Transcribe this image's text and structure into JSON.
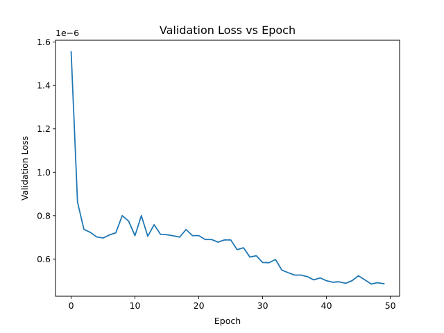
{
  "chart_data": {
    "type": "line",
    "title": "Validation Loss vs Epoch",
    "xlabel": "Epoch",
    "ylabel": "Validation Loss",
    "y_offset_label": "1e−6",
    "y_scale_factor": 1e-06,
    "xlim": [
      -2.45,
      51.45
    ],
    "ylim": [
      0.4285,
      1.6085
    ],
    "x_ticks": [
      0,
      10,
      20,
      30,
      40,
      50
    ],
    "x_tick_labels": [
      "0",
      "10",
      "20",
      "30",
      "40",
      "50"
    ],
    "y_ticks": [
      0.6,
      0.8,
      1.0,
      1.2,
      1.4,
      1.6
    ],
    "y_tick_labels": [
      "0.6",
      "0.8",
      "1.0",
      "1.2",
      "1.4",
      "1.6"
    ],
    "grid": false,
    "legend": "none",
    "series": [
      {
        "color": "#1f77b4",
        "x": [
          0,
          1,
          2,
          3,
          4,
          5,
          6,
          7,
          8,
          9,
          10,
          11,
          12,
          13,
          14,
          15,
          16,
          17,
          18,
          19,
          20,
          21,
          22,
          23,
          24,
          25,
          26,
          27,
          28,
          29,
          30,
          31,
          32,
          33,
          34,
          35,
          36,
          37,
          38,
          39,
          40,
          41,
          42,
          43,
          44,
          45,
          46,
          47,
          48,
          49
        ],
        "values": [
          1.555,
          0.862,
          0.737,
          0.723,
          0.702,
          0.697,
          0.711,
          0.721,
          0.8,
          0.775,
          0.708,
          0.8,
          0.705,
          0.758,
          0.714,
          0.712,
          0.707,
          0.701,
          0.736,
          0.708,
          0.708,
          0.69,
          0.69,
          0.678,
          0.688,
          0.688,
          0.643,
          0.652,
          0.609,
          0.615,
          0.584,
          0.583,
          0.598,
          0.549,
          0.537,
          0.526,
          0.526,
          0.519,
          0.504,
          0.513,
          0.5,
          0.493,
          0.495,
          0.488,
          0.5,
          0.523,
          0.504,
          0.485,
          0.491,
          0.486
        ]
      }
    ]
  }
}
